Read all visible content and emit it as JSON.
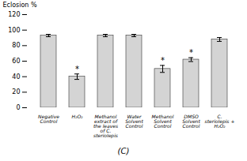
{
  "chart_data": {
    "type": "bar",
    "categories": [
      "Negative Control",
      "H₂O₂",
      "Methanol extract of the leaves of C. steriolepis",
      "Water Solvent Control",
      "Methanol Solvent Control",
      "DMSO Solvent Control",
      "C. steriolepis + H₂O₂"
    ],
    "values": [
      93,
      40,
      93,
      93,
      50,
      62,
      88
    ],
    "errors": [
      1.5,
      3.5,
      1.5,
      1.5,
      4.5,
      2.5,
      2.5
    ],
    "annotations": [
      {
        "category": "H₂O₂",
        "text": "*"
      },
      {
        "category": "Methanol Solvent Control",
        "text": "*"
      },
      {
        "category": "DMSO Solvent Control",
        "text": "*"
      }
    ],
    "ylabel": "Eclosion %",
    "caption": "(C)",
    "color": "#d4d4d4",
    "ylim": [
      0,
      120
    ],
    "yticks": [
      0,
      20,
      40,
      60,
      80,
      100,
      120
    ],
    "grid": false
  }
}
